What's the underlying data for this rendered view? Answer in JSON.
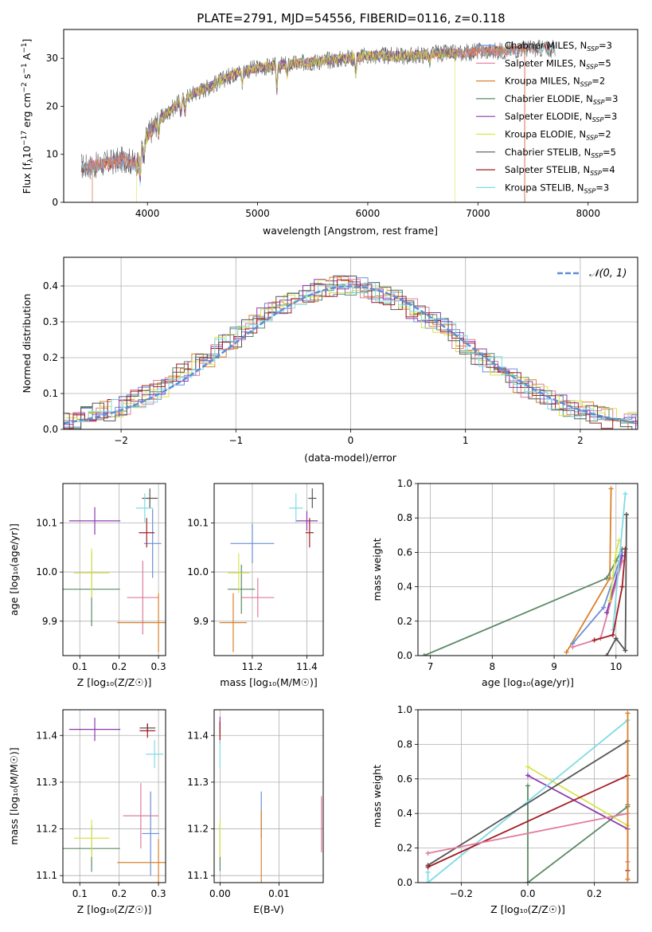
{
  "colors": {
    "Chabrier MILES": "#6a8fd6",
    "Salpeter MILES": "#e07b9d",
    "Kroupa MILES": "#d9822b",
    "Chabrier ELODIE": "#5c8a65",
    "Salpeter ELODIE": "#8e3ab0",
    "Kroupa ELODIE": "#d8e44a",
    "Chabrier STELIB": "#555555",
    "Salpeter STELIB": "#a11f25",
    "Kroupa STELIB": "#7fdbe3"
  },
  "chart_data": [
    {
      "id": "spectrum",
      "type": "line",
      "title": "PLATE=2791, MJD=54556, FIBERID=0116, z=0.118",
      "xlabel": "wavelength [Angstrom, rest frame]",
      "ylabel_parts": [
        "Flux [f",
        "λ",
        "10",
        "−17",
        " erg cm",
        "−2",
        " s",
        "−1",
        " A",
        "−1",
        "]"
      ],
      "xlim": [
        3240,
        8450
      ],
      "ylim": [
        0,
        36
      ],
      "xticks": [
        4000,
        5000,
        6000,
        7000,
        8000
      ],
      "yticks": [
        0,
        10,
        20,
        30
      ],
      "continuum": {
        "x": [
          3400,
          3500,
          3600,
          3700,
          3800,
          3900,
          4000,
          4100,
          4200,
          4300,
          4400,
          4600,
          4800,
          5000,
          5200,
          5400,
          5600,
          5800,
          6000,
          6200,
          6400,
          6600,
          6800,
          7000,
          7200,
          7400,
          7500
        ],
        "y": [
          7.5,
          7.5,
          8,
          8.5,
          9,
          8,
          14,
          17,
          19,
          21,
          22.5,
          24.5,
          27,
          28,
          28.5,
          29,
          29.5,
          30,
          30.5,
          30.5,
          30.5,
          31,
          31,
          31.5,
          31.5,
          32,
          32
        ]
      },
      "legend": [
        {
          "label": "Chabrier MILES",
          "n": "3"
        },
        {
          "label": "Salpeter MILES",
          "n": "5"
        },
        {
          "label": "Kroupa MILES",
          "n": "2"
        },
        {
          "label": "Chabrier ELODIE",
          "n": "3"
        },
        {
          "label": "Salpeter ELODIE",
          "n": "3"
        },
        {
          "label": "Kroupa ELODIE",
          "n": "2"
        },
        {
          "label": "Chabrier STELIB",
          "n": "5"
        },
        {
          "label": "Salpeter STELIB",
          "n": "4"
        },
        {
          "label": "Kroupa STELIB",
          "n": "3"
        }
      ],
      "legend_nssp_prefix": "N",
      "legend_nssp_sub": "SSP",
      "legend_placement": "upper right"
    },
    {
      "id": "residuals",
      "type": "histogram",
      "xlabel": "(data-model)/error",
      "ylabel": "Normed distribution",
      "xlim": [
        -2.5,
        2.5
      ],
      "ylim": [
        0,
        0.48
      ],
      "xticks": [
        -2,
        -1,
        0,
        1,
        2
      ],
      "xtick_labels": [
        "−2",
        "−1",
        "0",
        "1",
        "2"
      ],
      "yticks": [
        0.0,
        0.1,
        0.2,
        0.3,
        0.4
      ],
      "ytick_labels": [
        "0.0",
        "0.1",
        "0.2",
        "0.3",
        "0.4"
      ],
      "bin_width": 0.1,
      "normal_label": "𝒩(0, 1)",
      "normal_color": "#5a8fd8",
      "grid": true
    },
    {
      "id": "age_vs_z",
      "type": "errorbar",
      "xlabel": "Z [log₁₀(Z/Z☉)]",
      "ylabel": "age  [log₁₀(age/yr)]",
      "xlim": [
        0.057,
        0.318
      ],
      "ylim": [
        9.83,
        10.18
      ],
      "xticks": [
        0.1,
        0.2,
        0.3
      ],
      "xtick_labels": [
        "0.1",
        "0.2",
        "0.3"
      ],
      "yticks": [
        9.9,
        10.0,
        10.1
      ],
      "ytick_labels": [
        "9.9",
        "10.0",
        "10.1"
      ],
      "points": [
        {
          "s": "Chabrier MILES",
          "x": 0.285,
          "xe": 0.022,
          "y": 10.058,
          "ye": 0.07
        },
        {
          "s": "Salpeter MILES",
          "x": 0.26,
          "xe": 0.04,
          "y": 9.948,
          "ye": 0.075
        },
        {
          "s": "Kroupa MILES",
          "x": 0.3,
          "xe": 0.105,
          "y": 9.897,
          "ye": 0.06
        },
        {
          "s": "Chabrier ELODIE",
          "x": 0.13,
          "xe": 0.072,
          "y": 9.965,
          "ye": 0.075
        },
        {
          "s": "Salpeter ELODIE",
          "x": 0.138,
          "xe": 0.065,
          "y": 10.104,
          "ye": 0.028
        },
        {
          "s": "Kroupa ELODIE",
          "x": 0.13,
          "xe": 0.045,
          "y": 9.998,
          "ye": 0.05
        },
        {
          "s": "Chabrier STELIB",
          "x": 0.278,
          "xe": 0.02,
          "y": 10.15,
          "ye": 0.02
        },
        {
          "s": "Salpeter STELIB",
          "x": 0.27,
          "xe": 0.02,
          "y": 10.08,
          "ye": 0.03
        },
        {
          "s": "Kroupa STELIB",
          "x": 0.265,
          "xe": 0.022,
          "y": 10.13,
          "ye": 0.03
        }
      ]
    },
    {
      "id": "age_vs_mass",
      "type": "errorbar",
      "xlabel": "mass [log₁₀(M/M☉)]",
      "ylabel": "",
      "xlim": [
        11.06,
        11.46
      ],
      "ylim": [
        9.83,
        10.18
      ],
      "xticks": [
        11.2,
        11.4
      ],
      "xtick_labels": [
        "11.2",
        "11.4"
      ],
      "yticks": [
        9.9,
        10.0,
        10.1
      ],
      "ytick_labels": [
        "9.9",
        "10.0",
        "10.1"
      ],
      "points": [
        {
          "s": "Chabrier MILES",
          "x": 11.2,
          "xe": 0.08,
          "y": 10.058,
          "ye": 0.04
        },
        {
          "s": "Salpeter MILES",
          "x": 11.22,
          "xe": 0.06,
          "y": 9.948,
          "ye": 0.04
        },
        {
          "s": "Kroupa MILES",
          "x": 11.13,
          "xe": 0.05,
          "y": 9.897,
          "ye": 0.06
        },
        {
          "s": "Chabrier ELODIE",
          "x": 11.16,
          "xe": 0.05,
          "y": 9.965,
          "ye": 0.05
        },
        {
          "s": "Salpeter ELODIE",
          "x": 11.4,
          "xe": 0.04,
          "y": 10.104,
          "ye": 0.02
        },
        {
          "s": "Kroupa ELODIE",
          "x": 11.15,
          "xe": 0.04,
          "y": 9.998,
          "ye": 0.04
        },
        {
          "s": "Chabrier STELIB",
          "x": 11.42,
          "xe": 0.015,
          "y": 10.15,
          "ye": 0.02
        },
        {
          "s": "Salpeter STELIB",
          "x": 11.41,
          "xe": 0.015,
          "y": 10.08,
          "ye": 0.03
        },
        {
          "s": "Kroupa STELIB",
          "x": 11.36,
          "xe": 0.025,
          "y": 10.13,
          "ye": 0.03
        }
      ]
    },
    {
      "id": "mass_vs_z",
      "type": "errorbar",
      "xlabel": "Z [log₁₀(Z/Z☉)]",
      "ylabel": "mass [log₁₀(M/M☉)]",
      "xlim": [
        0.057,
        0.318
      ],
      "ylim": [
        11.085,
        11.455
      ],
      "xticks": [
        0.1,
        0.2,
        0.3
      ],
      "xtick_labels": [
        "0.1",
        "0.2",
        "0.3"
      ],
      "yticks": [
        11.1,
        11.2,
        11.3,
        11.4
      ],
      "ytick_labels": [
        "11.1",
        "11.2",
        "11.3",
        "11.4"
      ],
      "points": [
        {
          "s": "Chabrier MILES",
          "x": 0.28,
          "xe": 0.022,
          "y": 11.19,
          "ye": 0.09
        },
        {
          "s": "Salpeter MILES",
          "x": 0.255,
          "xe": 0.045,
          "y": 11.228,
          "ye": 0.07
        },
        {
          "s": "Kroupa MILES",
          "x": 0.3,
          "xe": 0.105,
          "y": 11.128,
          "ye": 0.05
        },
        {
          "s": "Chabrier ELODIE",
          "x": 0.13,
          "xe": 0.072,
          "y": 11.158,
          "ye": 0.05
        },
        {
          "s": "Salpeter ELODIE",
          "x": 0.138,
          "xe": 0.065,
          "y": 11.413,
          "ye": 0.025
        },
        {
          "s": "Kroupa ELODIE",
          "x": 0.13,
          "xe": 0.045,
          "y": 11.18,
          "ye": 0.04
        },
        {
          "s": "Chabrier STELIB",
          "x": 0.272,
          "xe": 0.02,
          "y": 11.416,
          "ye": 0.01
        },
        {
          "s": "Salpeter STELIB",
          "x": 0.272,
          "xe": 0.02,
          "y": 11.41,
          "ye": 0.015
        },
        {
          "s": "Kroupa STELIB",
          "x": 0.29,
          "xe": 0.022,
          "y": 11.36,
          "ye": 0.03
        }
      ]
    },
    {
      "id": "mass_vs_ebv",
      "type": "errorbar",
      "xlabel": "E(B-V)",
      "ylabel": "",
      "xlim": [
        -0.001,
        0.0175
      ],
      "ylim": [
        11.085,
        11.455
      ],
      "xticks": [
        0.0,
        0.01
      ],
      "xtick_labels": [
        "0.00",
        "0.01"
      ],
      "yticks": [
        11.1,
        11.2,
        11.3,
        11.4
      ],
      "ytick_labels": [
        "11.1",
        "11.2",
        "11.3",
        "11.4"
      ],
      "points": [
        {
          "s": "Chabrier MILES",
          "x": 0.007,
          "xe": 0.0,
          "y": 11.23,
          "ye": 0.05
        },
        {
          "s": "Salpeter MILES",
          "x": 0.0172,
          "xe": 0.0,
          "y": 11.21,
          "ye": 0.06
        },
        {
          "s": "Kroupa MILES",
          "x": 0.007,
          "xe": 0.0,
          "y": 11.13,
          "ye": 0.11
        },
        {
          "s": "Chabrier ELODIE",
          "x": 0.0,
          "xe": 0.0,
          "y": 11.16,
          "ye": 0.05
        },
        {
          "s": "Salpeter ELODIE",
          "x": 0.0,
          "xe": 0.0,
          "y": 11.41,
          "ye": 0.03
        },
        {
          "s": "Kroupa ELODIE",
          "x": 0.0,
          "xe": 0.0,
          "y": 11.18,
          "ye": 0.04
        },
        {
          "s": "Chabrier STELIB",
          "x": 0.0,
          "xe": 0.0,
          "y": 11.416,
          "ye": 0.012
        },
        {
          "s": "Salpeter STELIB",
          "x": 0.0,
          "xe": 0.0,
          "y": 11.41,
          "ye": 0.02
        },
        {
          "s": "Kroupa STELIB",
          "x": 0.0,
          "xe": 0.0,
          "y": 11.36,
          "ye": 0.03
        }
      ]
    },
    {
      "id": "weight_vs_age",
      "type": "line",
      "xlabel": "age  [log₁₀(age/yr)]",
      "ylabel": "mass weight",
      "xlim": [
        6.8,
        10.35
      ],
      "ylim": [
        0,
        1
      ],
      "xticks": [
        7,
        8,
        9,
        10
      ],
      "xtick_labels": [
        "7",
        "8",
        "9",
        "10"
      ],
      "yticks": [
        0,
        0.2,
        0.4,
        0.6,
        0.8,
        1.0
      ],
      "ytick_labels": [
        "0.0",
        "0.2",
        "0.4",
        "0.6",
        "0.8",
        "1.0"
      ],
      "series": [
        {
          "s": "Kroupa MILES",
          "x": [
            9.2,
            9.9,
            9.92
          ],
          "y": [
            0.02,
            0.45,
            0.97
          ]
        },
        {
          "s": "Chabrier ELODIE",
          "x": [
            6.9,
            9.85,
            10.0,
            10.1
          ],
          "y": [
            0.0,
            0.45,
            0.55,
            0.62
          ]
        },
        {
          "s": "Chabrier MILES",
          "x": [
            9.3,
            9.8,
            10.1
          ],
          "y": [
            0.07,
            0.28,
            0.6
          ]
        },
        {
          "s": "Salpeter MILES",
          "x": [
            9.3,
            9.75,
            10.1
          ],
          "y": [
            0.05,
            0.1,
            0.55
          ]
        },
        {
          "s": "Salpeter ELODIE",
          "x": [
            9.85,
            10.1
          ],
          "y": [
            0.25,
            0.58
          ]
        },
        {
          "s": "Kroupa ELODIE",
          "x": [
            9.9,
            10.0,
            10.05
          ],
          "y": [
            0.32,
            0.6,
            0.67
          ]
        },
        {
          "s": "Kroupa STELIB",
          "x": [
            9.95,
            10.15
          ],
          "y": [
            0.15,
            0.94
          ]
        },
        {
          "s": "Salpeter STELIB",
          "x": [
            9.65,
            9.95,
            10.1,
            10.15
          ],
          "y": [
            0.09,
            0.12,
            0.4,
            0.62
          ]
        },
        {
          "s": "Chabrier STELIB",
          "x": [
            9.85,
            10.0,
            10.15,
            10.17
          ],
          "y": [
            0.0,
            0.1,
            0.03,
            0.82
          ]
        }
      ]
    },
    {
      "id": "weight_vs_z",
      "type": "line",
      "xlabel": "Z [log₁₀(Z/Z☉)]",
      "ylabel": "mass weight",
      "xlim": [
        -0.33,
        0.33
      ],
      "ylim": [
        0,
        1
      ],
      "xticks": [
        -0.2,
        0.0,
        0.2
      ],
      "xtick_labels": [
        "−0.2",
        "0.0",
        "0.2"
      ],
      "yticks": [
        0,
        0.2,
        0.4,
        0.6,
        0.8,
        1.0
      ],
      "ytick_labels": [
        "0.0",
        "0.2",
        "0.4",
        "0.6",
        "0.8",
        "1.0"
      ],
      "series": [
        {
          "s": "Chabrier ELODIE",
          "x": [
            0.0,
            0.0,
            0.3,
            0.3
          ],
          "y": [
            0.56,
            0.0,
            0.44,
            0.45
          ]
        },
        {
          "s": "Salpeter ELODIE",
          "x": [
            0.0,
            0.3
          ],
          "y": [
            0.62,
            0.31
          ]
        },
        {
          "s": "Kroupa ELODIE",
          "x": [
            0.0,
            0.3
          ],
          "y": [
            0.67,
            0.33
          ]
        },
        {
          "s": "Kroupa STELIB",
          "x": [
            -0.3,
            -0.3,
            0.3
          ],
          "y": [
            0.06,
            0.0,
            0.94
          ]
        },
        {
          "s": "Chabrier STELIB",
          "x": [
            -0.3,
            0.3,
            0.3
          ],
          "y": [
            0.1,
            0.82,
            0.02
          ]
        },
        {
          "s": "Salpeter STELIB",
          "x": [
            -0.3,
            0.3,
            0.3
          ],
          "y": [
            0.09,
            0.62,
            0.07
          ]
        },
        {
          "s": "Salpeter MILES",
          "x": [
            -0.3,
            0.3,
            0.3
          ],
          "y": [
            0.17,
            0.4,
            0.12
          ]
        },
        {
          "s": "Kroupa MILES",
          "x": [
            0.3,
            0.3
          ],
          "y": [
            0.98,
            0.02
          ]
        }
      ]
    }
  ]
}
